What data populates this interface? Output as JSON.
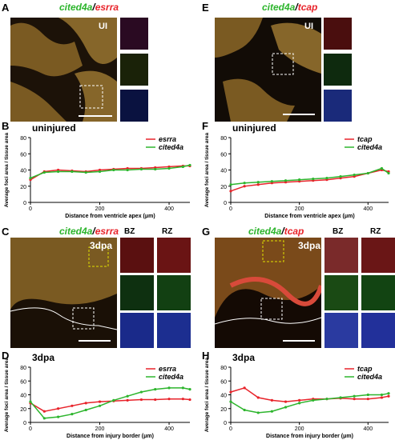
{
  "panels": {
    "A": {
      "letter": "A",
      "gene1": "cited4a",
      "sep": "/",
      "gene2": "esrra",
      "ui": "UI"
    },
    "E": {
      "letter": "E",
      "gene1": "cited4a",
      "sep": "/",
      "gene2": "tcap",
      "ui": "UI"
    },
    "C": {
      "letter": "C",
      "gene1": "cited4a",
      "sep": "/",
      "gene2": "esrra",
      "cond": "3dpa",
      "bz": "BZ",
      "rz": "RZ"
    },
    "G": {
      "letter": "G",
      "gene1": "cited4a",
      "sep": "/",
      "gene2": "tcap",
      "cond": "3dpa",
      "bz": "BZ",
      "rz": "RZ"
    }
  },
  "colors": {
    "green": "#2db52d",
    "red": "#e8232a",
    "tissue": "#8a6b2a",
    "blue": "#3a5bd6",
    "magenta": "#d23fb6"
  },
  "chart_data": [
    {
      "panel": "B",
      "type": "scatter",
      "title": "uninjured",
      "xlabel": "Distance from ventricle apex (μm)",
      "ylabel": "Average foci area / tissue area",
      "xlim": [
        0,
        460
      ],
      "ylim": [
        0,
        80
      ],
      "xticks": [
        0,
        200,
        400
      ],
      "yticks": [
        0,
        20,
        40,
        60,
        80
      ],
      "legend": "top-right",
      "series": [
        {
          "name": "esrra",
          "color": "#e8232a",
          "x": [
            0,
            40,
            80,
            120,
            160,
            200,
            240,
            280,
            320,
            360,
            400,
            440,
            460
          ],
          "y": [
            28,
            38,
            40,
            39,
            38,
            40,
            41,
            42,
            42,
            43,
            44,
            45,
            45
          ]
        },
        {
          "name": "cited4a",
          "color": "#2db52d",
          "x": [
            0,
            40,
            80,
            120,
            160,
            200,
            240,
            280,
            320,
            360,
            400,
            440,
            460
          ],
          "y": [
            30,
            37,
            38,
            38,
            37,
            38,
            40,
            40,
            41,
            41,
            42,
            44,
            46
          ]
        }
      ]
    },
    {
      "panel": "F",
      "type": "scatter",
      "title": "uninjured",
      "xlabel": "Distance from ventricle apex (μm)",
      "ylabel": "Average foci area / tissue area",
      "xlim": [
        0,
        460
      ],
      "ylim": [
        0,
        80
      ],
      "xticks": [
        0,
        200,
        400
      ],
      "yticks": [
        0,
        20,
        40,
        60,
        80
      ],
      "legend": "top-right",
      "series": [
        {
          "name": "tcap",
          "color": "#e8232a",
          "x": [
            0,
            40,
            80,
            120,
            160,
            200,
            240,
            280,
            320,
            360,
            400,
            440,
            460
          ],
          "y": [
            14,
            20,
            22,
            24,
            25,
            26,
            27,
            28,
            30,
            32,
            36,
            40,
            38
          ]
        },
        {
          "name": "cited4a",
          "color": "#2db52d",
          "x": [
            0,
            40,
            80,
            120,
            160,
            200,
            240,
            280,
            320,
            360,
            400,
            440,
            460
          ],
          "y": [
            22,
            24,
            25,
            26,
            27,
            28,
            29,
            30,
            32,
            34,
            36,
            42,
            36
          ]
        }
      ]
    },
    {
      "panel": "D",
      "type": "scatter",
      "title": "3dpa",
      "xlabel": "Distance from injury border (μm)",
      "ylabel": "Average foci area / tissue area",
      "xlim": [
        0,
        460
      ],
      "ylim": [
        0,
        80
      ],
      "xticks": [
        0,
        200,
        400
      ],
      "yticks": [
        0,
        20,
        40,
        60,
        80
      ],
      "legend": "top-right",
      "series": [
        {
          "name": "esrra",
          "color": "#e8232a",
          "x": [
            0,
            40,
            80,
            120,
            160,
            200,
            240,
            280,
            320,
            360,
            400,
            440,
            460
          ],
          "y": [
            28,
            16,
            20,
            24,
            28,
            30,
            31,
            32,
            33,
            33,
            34,
            34,
            33
          ]
        },
        {
          "name": "cited4a",
          "color": "#2db52d",
          "x": [
            0,
            40,
            80,
            120,
            160,
            200,
            240,
            280,
            320,
            360,
            400,
            440,
            460
          ],
          "y": [
            30,
            6,
            8,
            12,
            18,
            24,
            32,
            38,
            44,
            48,
            50,
            50,
            48
          ]
        }
      ]
    },
    {
      "panel": "H",
      "type": "scatter",
      "title": "3dpa",
      "xlabel": "Distance from injury border (μm)",
      "ylabel": "Average foci area / tissue area",
      "xlim": [
        0,
        460
      ],
      "ylim": [
        0,
        80
      ],
      "xticks": [
        0,
        200,
        400
      ],
      "yticks": [
        0,
        20,
        40,
        60,
        80
      ],
      "legend": "top-right",
      "series": [
        {
          "name": "tcap",
          "color": "#e8232a",
          "x": [
            0,
            40,
            80,
            120,
            160,
            200,
            240,
            280,
            320,
            360,
            400,
            440,
            460
          ],
          "y": [
            44,
            50,
            36,
            32,
            30,
            32,
            34,
            34,
            35,
            34,
            34,
            36,
            38
          ]
        },
        {
          "name": "cited4a",
          "color": "#2db52d",
          "x": [
            0,
            40,
            80,
            120,
            160,
            200,
            240,
            280,
            320,
            360,
            400,
            440,
            460
          ],
          "y": [
            30,
            18,
            14,
            16,
            22,
            28,
            32,
            34,
            36,
            38,
            40,
            40,
            42
          ]
        }
      ]
    }
  ]
}
